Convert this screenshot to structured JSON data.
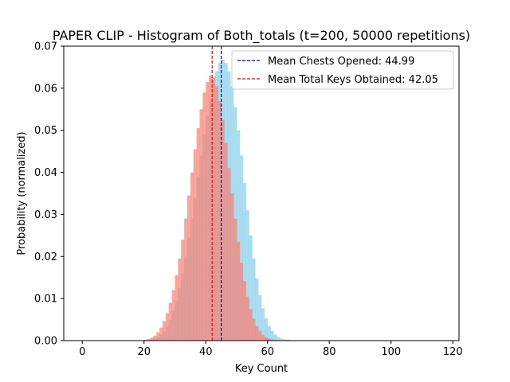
{
  "chart_data": {
    "type": "histogram",
    "title": "PAPER CLIP - Histogram of Both_totals (t=200, 50000 repetitions)",
    "xlabel": "Key Count",
    "ylabel": "Probability (normalized)",
    "xlim": [
      -6,
      122
    ],
    "ylim": [
      0,
      0.07
    ],
    "xticks": [
      0,
      20,
      40,
      60,
      80,
      100,
      120
    ],
    "yticks": [
      0.0,
      0.01,
      0.02,
      0.03,
      0.04,
      0.05,
      0.06,
      0.07
    ],
    "ytick_labels": [
      "0.00",
      "0.01",
      "0.02",
      "0.03",
      "0.04",
      "0.05",
      "0.06",
      "0.07"
    ],
    "bin_width": 1,
    "legend_position": "top-right",
    "series": [
      {
        "name": "Chests Opened",
        "color": "#87ceeb",
        "alpha": 0.7,
        "bin_start": 22,
        "values": [
          0.0002,
          0.0005,
          0.0008,
          0.0014,
          0.0022,
          0.0033,
          0.005,
          0.007,
          0.0095,
          0.0125,
          0.016,
          0.02,
          0.0245,
          0.029,
          0.034,
          0.039,
          0.044,
          0.049,
          0.0535,
          0.0575,
          0.061,
          0.064,
          0.066,
          0.0668,
          0.066,
          0.064,
          0.0605,
          0.0555,
          0.05,
          0.044,
          0.0375,
          0.031,
          0.025,
          0.0195,
          0.0148,
          0.0108,
          0.0077,
          0.0053,
          0.0035,
          0.0023,
          0.0014,
          0.0008,
          0.0005,
          0.0003,
          0.0002,
          0.0001
        ]
      },
      {
        "name": "Total Keys Obtained",
        "color": "#fa8072",
        "alpha": 0.7,
        "bin_start": 20,
        "values": [
          0.0002,
          0.0004,
          0.0007,
          0.0012,
          0.002,
          0.0031,
          0.0046,
          0.0065,
          0.009,
          0.012,
          0.0155,
          0.0195,
          0.024,
          0.029,
          0.0345,
          0.04,
          0.0455,
          0.0505,
          0.055,
          0.059,
          0.0615,
          0.063,
          0.0625,
          0.0605,
          0.057,
          0.0525,
          0.047,
          0.041,
          0.035,
          0.029,
          0.0235,
          0.0185,
          0.0142,
          0.0105,
          0.0075,
          0.0052,
          0.0035,
          0.0023,
          0.0014,
          0.0008,
          0.0005,
          0.0003,
          0.0002,
          0.0001
        ]
      }
    ],
    "lines": [
      {
        "label": "Mean Chests Opened: 44.99",
        "x": 44.99,
        "color": "#0000ff",
        "style": "dashed"
      },
      {
        "label": "Mean Total Keys Obtained: 42.05",
        "x": 42.05,
        "color": "#ff0000",
        "style": "dashed"
      }
    ]
  }
}
